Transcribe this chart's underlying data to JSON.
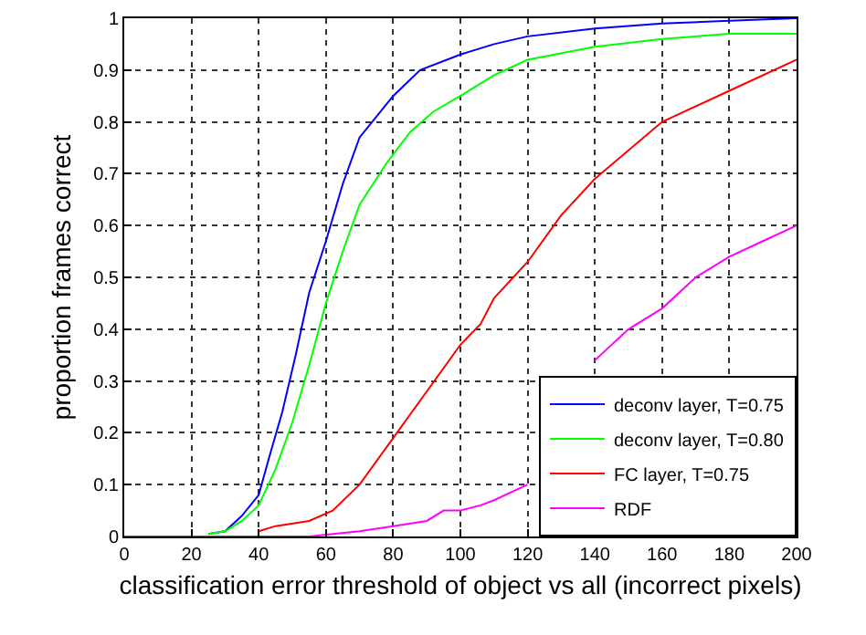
{
  "chart_data": {
    "type": "line",
    "xlabel": "classification error threshold of object vs all (incorrect pixels)",
    "ylabel": "proportion frames correct",
    "xlim": [
      0,
      200
    ],
    "xticks": [
      0,
      20,
      40,
      60,
      80,
      100,
      120,
      140,
      160,
      180,
      200
    ],
    "ylim": [
      0,
      1
    ],
    "yticks": [
      0,
      0.1,
      0.2,
      0.3,
      0.4,
      0.5,
      0.6,
      0.7,
      0.8,
      0.9,
      1
    ],
    "grid": true,
    "legend": "bottom right",
    "line_style": "solid",
    "marker": "none",
    "series": [
      {
        "name": "deconv layer, T=0.75",
        "color": "#0000ff",
        "x": [
          25,
          30,
          35,
          40,
          43,
          47,
          51,
          55,
          60,
          65,
          70,
          75,
          80,
          88,
          100,
          110,
          120,
          140,
          160,
          180,
          200
        ],
        "values": [
          0.005,
          0.01,
          0.04,
          0.08,
          0.15,
          0.24,
          0.35,
          0.47,
          0.57,
          0.68,
          0.77,
          0.81,
          0.85,
          0.9,
          0.93,
          0.95,
          0.965,
          0.98,
          0.99,
          0.995,
          1
        ]
      },
      {
        "name": "deconv layer, T=0.80",
        "color": "#00ff00",
        "x": [
          25,
          30,
          35,
          40,
          45,
          50,
          55,
          60,
          65,
          70,
          78,
          85,
          92,
          100,
          110,
          120,
          140,
          160,
          180,
          200
        ],
        "values": [
          0.005,
          0.01,
          0.03,
          0.06,
          0.13,
          0.22,
          0.33,
          0.45,
          0.55,
          0.64,
          0.72,
          0.78,
          0.82,
          0.85,
          0.89,
          0.92,
          0.945,
          0.96,
          0.97,
          0.97
        ]
      },
      {
        "name": "FC layer, T=0.75",
        "color": "#ff0000",
        "x": [
          40,
          45,
          55,
          62,
          70,
          80,
          90,
          100,
          106,
          110,
          120,
          130,
          140,
          160,
          180,
          200
        ],
        "values": [
          0.01,
          0.02,
          0.03,
          0.05,
          0.1,
          0.19,
          0.28,
          0.37,
          0.41,
          0.46,
          0.53,
          0.62,
          0.69,
          0.8,
          0.86,
          0.92
        ]
      },
      {
        "name": "RDF",
        "color": "#ff00ff",
        "x": [
          0,
          55,
          70,
          80,
          90,
          95,
          100,
          106,
          110,
          120,
          125,
          130,
          135,
          140,
          150,
          160,
          170,
          180,
          190,
          200
        ],
        "values": [
          0,
          0,
          0.01,
          0.02,
          0.03,
          0.05,
          0.05,
          0.06,
          0.07,
          0.1,
          null,
          null,
          null,
          0.34,
          0.4,
          0.44,
          0.5,
          0.54,
          0.57,
          0.6
        ]
      }
    ]
  }
}
